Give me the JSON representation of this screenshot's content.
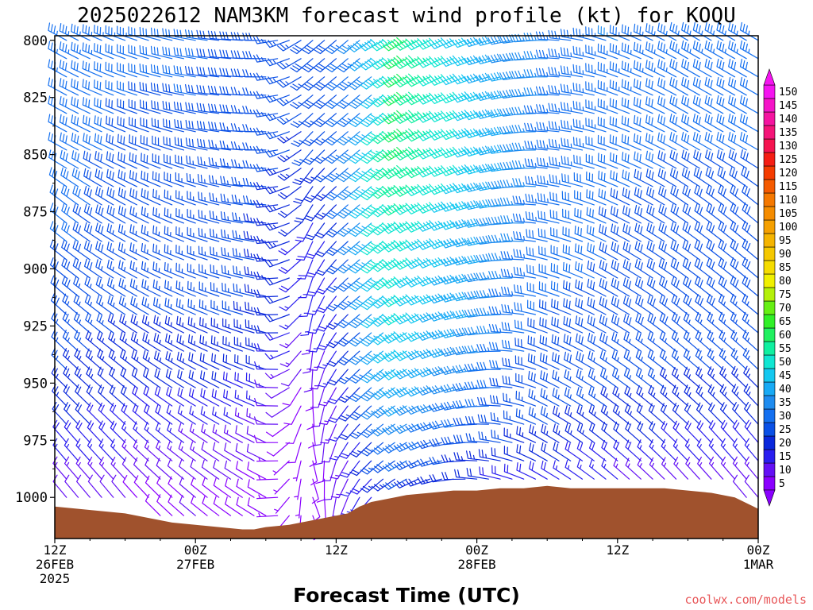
{
  "header": {
    "title": "2025022612 NAM3KM forecast wind profile (kt) for KOQU"
  },
  "footer": {
    "credit": "coolwx.com/models"
  },
  "chart_data": {
    "type": "wind_barb_time_height",
    "title": "2025022612 NAM3KM forecast wind profile (kt) for KOQU",
    "xlabel": "Forecast Time (UTC)",
    "ylabel": "",
    "xlim_hours": [
      0,
      60
    ],
    "ylim_hPa": [
      1018,
      798
    ],
    "y_axis": "pressure (hPa), decreasing upward",
    "yticks": [
      800,
      825,
      850,
      875,
      900,
      925,
      950,
      975,
      1000
    ],
    "xticks": [
      {
        "hour": 0,
        "lines": [
          "12Z",
          "26FEB",
          "2025"
        ]
      },
      {
        "hour": 12,
        "lines": [
          "00Z",
          "27FEB"
        ]
      },
      {
        "hour": 24,
        "lines": [
          "12Z"
        ]
      },
      {
        "hour": 36,
        "lines": [
          "00Z",
          "28FEB"
        ]
      },
      {
        "hour": 48,
        "lines": [
          "12Z"
        ]
      },
      {
        "hour": 60,
        "lines": [
          "00Z",
          "1MAR"
        ]
      }
    ],
    "colorbar": {
      "units": "kt",
      "levels": [
        5,
        10,
        15,
        20,
        25,
        30,
        35,
        40,
        45,
        50,
        55,
        60,
        65,
        70,
        75,
        80,
        85,
        90,
        95,
        100,
        105,
        110,
        115,
        120,
        125,
        130,
        135,
        140,
        145,
        150
      ],
      "colors": [
        "#8a00ff",
        "#6410f5",
        "#2a1ef0",
        "#0a28dc",
        "#0a50e6",
        "#1470f0",
        "#1e8cf0",
        "#18aaf5",
        "#14c8f0",
        "#10e6d2",
        "#10f0a0",
        "#20f060",
        "#30f028",
        "#66f014",
        "#b4f00a",
        "#f0f000",
        "#f5dc00",
        "#f5c800",
        "#f5b400",
        "#f5a000",
        "#f58c00",
        "#f57800",
        "#f55a00",
        "#f53c00",
        "#f51e14",
        "#f51450",
        "#f51478",
        "#f514a0",
        "#f514c8",
        "#f514f0"
      ]
    },
    "surface_pressure_hPa": {
      "hours": [
        0,
        2,
        4,
        6,
        8,
        10,
        12,
        14,
        16,
        17,
        18,
        20,
        22,
        24,
        25,
        26,
        27,
        28,
        29,
        30,
        32,
        34,
        36,
        38,
        40,
        42,
        44,
        46,
        48,
        50,
        52,
        54,
        56,
        58,
        60
      ],
      "values": [
        1004,
        1005,
        1006,
        1007,
        1009,
        1011,
        1012,
        1013,
        1014,
        1014,
        1013,
        1012,
        1010,
        1008,
        1007,
        1004,
        1002,
        1001,
        1000,
        999,
        998,
        997,
        997,
        996,
        996,
        995,
        996,
        996,
        996,
        996,
        996,
        997,
        998,
        1000,
        1005
      ]
    },
    "wind_profile": {
      "description": "Wind barbs every forecast hour at pressure levels from surface to 800 hPa; speeds in kt, direction = direction wind is from (deg).",
      "hours": [
        0,
        6,
        12,
        18,
        20,
        22,
        24,
        26,
        28,
        30,
        36,
        42,
        48,
        54,
        60
      ],
      "levels_hPa": [
        800,
        825,
        850,
        875,
        900,
        925,
        950,
        975,
        1000
      ],
      "speed_kt": [
        [
          35,
          33,
          31,
          28,
          25,
          28,
          30,
          35,
          50,
          60,
          45,
          35,
          35,
          33,
          33
        ],
        [
          32,
          30,
          30,
          27,
          25,
          27,
          28,
          32,
          45,
          62,
          48,
          35,
          33,
          32,
          32
        ],
        [
          30,
          30,
          28,
          27,
          25,
          25,
          27,
          40,
          55,
          60,
          50,
          35,
          32,
          30,
          30
        ],
        [
          33,
          28,
          27,
          25,
          24,
          20,
          22,
          38,
          52,
          55,
          45,
          33,
          30,
          28,
          30
        ],
        [
          30,
          27,
          27,
          25,
          22,
          18,
          20,
          35,
          50,
          52,
          42,
          32,
          30,
          28,
          28
        ],
        [
          28,
          25,
          25,
          25,
          20,
          15,
          18,
          30,
          45,
          50,
          40,
          30,
          28,
          28,
          27
        ],
        [
          25,
          22,
          22,
          20,
          12,
          10,
          15,
          25,
          40,
          45,
          35,
          28,
          27,
          25,
          25
        ],
        [
          20,
          18,
          15,
          12,
          8,
          10,
          12,
          20,
          30,
          35,
          28,
          25,
          22,
          20,
          20
        ],
        [
          12,
          10,
          10,
          8,
          6,
          8,
          10,
          15,
          20,
          22,
          18,
          15,
          12,
          10,
          10
        ]
      ],
      "direction_deg": [
        [
          300,
          290,
          280,
          270,
          250,
          230,
          230,
          230,
          240,
          240,
          250,
          270,
          290,
          300,
          300
        ],
        [
          300,
          290,
          280,
          270,
          250,
          230,
          230,
          230,
          230,
          240,
          250,
          270,
          290,
          300,
          300
        ],
        [
          300,
          295,
          285,
          270,
          250,
          220,
          230,
          230,
          230,
          240,
          250,
          275,
          290,
          300,
          300
        ],
        [
          310,
          300,
          290,
          275,
          250,
          210,
          225,
          230,
          230,
          240,
          255,
          280,
          295,
          305,
          310
        ],
        [
          310,
          300,
          290,
          280,
          250,
          200,
          220,
          230,
          230,
          240,
          255,
          285,
          300,
          305,
          310
        ],
        [
          315,
          305,
          295,
          285,
          250,
          190,
          215,
          230,
          230,
          240,
          260,
          290,
          300,
          310,
          310
        ],
        [
          315,
          310,
          300,
          290,
          240,
          180,
          210,
          225,
          230,
          240,
          260,
          295,
          305,
          310,
          315
        ],
        [
          320,
          315,
          305,
          295,
          230,
          170,
          200,
          220,
          230,
          240,
          270,
          300,
          310,
          315,
          320
        ],
        [
          320,
          320,
          310,
          300,
          220,
          160,
          190,
          210,
          230,
          240,
          280,
          300,
          310,
          320,
          320
        ]
      ]
    }
  }
}
